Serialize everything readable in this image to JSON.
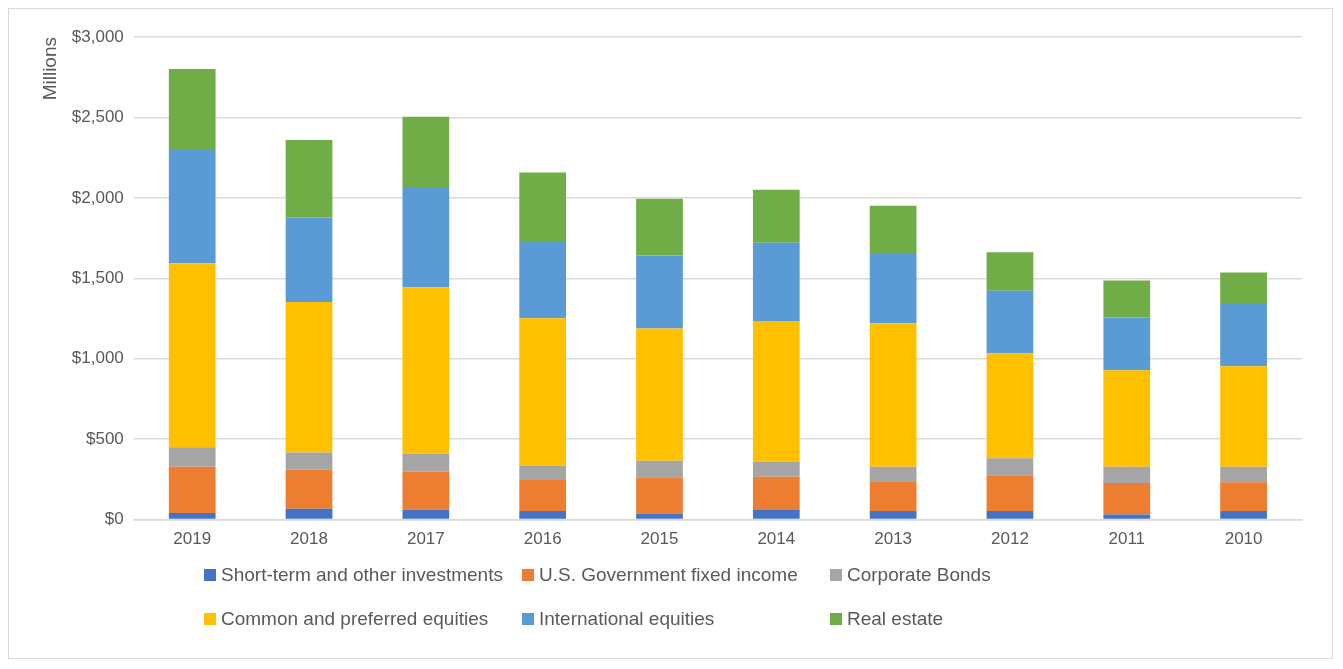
{
  "chart_data": {
    "type": "bar",
    "stacked": true,
    "ylabel": "Millions",
    "categories": [
      "2019",
      "2018",
      "2017",
      "2016",
      "2015",
      "2014",
      "2013",
      "2012",
      "2011",
      "2010"
    ],
    "series": [
      {
        "name": "Short-term and other investments",
        "color": "#4472c4",
        "values": [
          41,
          68,
          61,
          54,
          37,
          59,
          54,
          54,
          32,
          54
        ]
      },
      {
        "name": "U.S. Government fixed income",
        "color": "#ed7d31",
        "values": [
          288,
          242,
          237,
          192,
          227,
          207,
          185,
          222,
          195,
          178
        ]
      },
      {
        "name": "Corporate Bonds",
        "color": "#a5a5a5",
        "values": [
          120,
          107,
          112,
          91,
          102,
          95,
          90,
          105,
          102,
          97
        ]
      },
      {
        "name": "Common and preferred equities",
        "color": "#ffc000",
        "values": [
          1145,
          936,
          1035,
          914,
          822,
          874,
          891,
          653,
          599,
          624
        ]
      },
      {
        "name": "International equities",
        "color": "#5b9bd5",
        "values": [
          709,
          525,
          622,
          481,
          454,
          486,
          437,
          388,
          328,
          388
        ]
      },
      {
        "name": "Real estate",
        "color": "#70ad47",
        "values": [
          498,
          482,
          438,
          425,
          353,
          330,
          294,
          240,
          231,
          195
        ]
      }
    ],
    "ylim": [
      0,
      3000
    ],
    "yticks": [
      {
        "value": 0,
        "label": "$0"
      },
      {
        "value": 500,
        "label": "$500"
      },
      {
        "value": 1000,
        "label": "$1,000"
      },
      {
        "value": 1500,
        "label": "$1,500"
      },
      {
        "value": 2000,
        "label": "$2,000"
      },
      {
        "value": 2500,
        "label": "$2,500"
      },
      {
        "value": 3000,
        "label": "$3,000"
      }
    ],
    "grid": "y",
    "legend": "bottom"
  }
}
